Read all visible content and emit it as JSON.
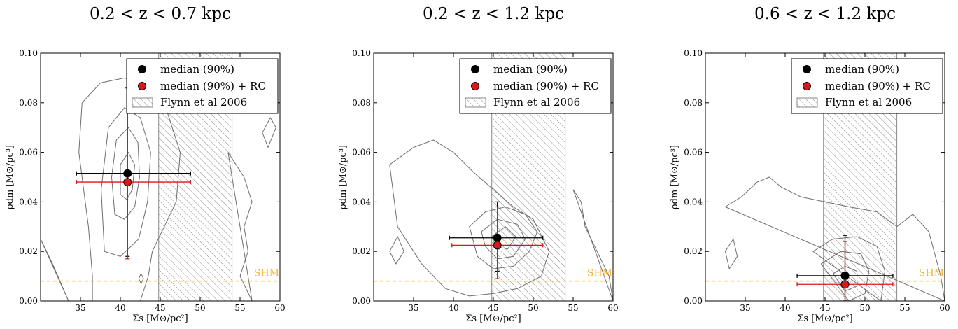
{
  "chart_data": [
    {
      "type": "scatter",
      "title": "0.2 < z < 0.7 kpc",
      "xlabel": "Σs [M⊙/pc²]",
      "ylabel": "ρdm [M⊙/pc³]",
      "xlim": [
        30,
        60
      ],
      "ylim": [
        0.0,
        0.1
      ],
      "xticks": [
        "35",
        "40",
        "45",
        "50",
        "55",
        "60"
      ],
      "yticks": [
        "0.00",
        "0.02",
        "0.04",
        "0.06",
        "0.08",
        "0.10"
      ],
      "legend_position": "top-right",
      "band": {
        "name": "Flynn et al 2006",
        "x": [
          44.8,
          54.0
        ]
      },
      "shm": {
        "name": "SHM",
        "y": 0.008
      },
      "series": [
        {
          "name": "median (90%)",
          "color": "#000000",
          "x": 40.9,
          "y": 0.0515,
          "xerr": [
            34.5,
            48.8
          ],
          "yerr": [
            0.018,
            0.086
          ]
        },
        {
          "name": "median (90%) + RC",
          "color": "#e0141b",
          "x": 40.9,
          "y": 0.048,
          "xerr": [
            34.5,
            48.8
          ],
          "yerr": [
            0.017,
            0.086
          ]
        }
      ],
      "contours": [
        [
          [
            36.5,
            0.0
          ],
          [
            36.5,
            0.01
          ],
          [
            36.0,
            0.03
          ],
          [
            34.8,
            0.06
          ],
          [
            35.2,
            0.08
          ],
          [
            37.5,
            0.088
          ],
          [
            40.5,
            0.09
          ],
          [
            43.0,
            0.088
          ],
          [
            45.5,
            0.08
          ],
          [
            47.5,
            0.06
          ],
          [
            47.0,
            0.04
          ],
          [
            45.5,
            0.03
          ],
          [
            44.0,
            0.02
          ],
          [
            43.5,
            0.01
          ],
          [
            42.5,
            0.0
          ]
        ],
        [
          [
            38.0,
            0.02
          ],
          [
            37.6,
            0.045
          ],
          [
            38.5,
            0.07
          ],
          [
            40.5,
            0.078
          ],
          [
            42.5,
            0.074
          ],
          [
            43.8,
            0.06
          ],
          [
            43.4,
            0.04
          ],
          [
            42.3,
            0.025
          ],
          [
            40.0,
            0.018
          ]
        ],
        [
          [
            39.3,
            0.035
          ],
          [
            38.9,
            0.05
          ],
          [
            39.5,
            0.065
          ],
          [
            41.0,
            0.07
          ],
          [
            42.2,
            0.064
          ],
          [
            42.4,
            0.05
          ],
          [
            41.8,
            0.038
          ],
          [
            40.5,
            0.033
          ]
        ],
        [
          [
            40.0,
            0.043
          ],
          [
            40.0,
            0.055
          ],
          [
            41.0,
            0.06
          ],
          [
            41.8,
            0.055
          ],
          [
            41.5,
            0.045
          ],
          [
            40.8,
            0.041
          ]
        ],
        [
          [
            30.0,
            0.025
          ],
          [
            31.5,
            0.015
          ],
          [
            33.5,
            0.0
          ]
        ],
        [
          [
            53.5,
            0.06
          ],
          [
            55.5,
            0.05
          ],
          [
            56.5,
            0.04
          ],
          [
            55.5,
            0.03
          ],
          [
            56.0,
            0.02
          ],
          [
            55.0,
            0.01
          ],
          [
            56.5,
            0.0
          ]
        ],
        [
          [
            57.8,
            0.068
          ],
          [
            58.8,
            0.074
          ],
          [
            59.5,
            0.07
          ],
          [
            58.5,
            0.062
          ]
        ],
        [
          [
            42.3,
            0.009
          ],
          [
            42.6,
            0.011
          ],
          [
            42.9,
            0.009
          ],
          [
            42.6,
            0.007
          ]
        ]
      ]
    },
    {
      "type": "scatter",
      "title": "0.2 < z < 1.2 kpc",
      "xlabel": "Σs [M⊙/pc²]",
      "ylabel": "ρdm [M⊙/pc³]",
      "xlim": [
        30,
        60
      ],
      "ylim": [
        0.0,
        0.1
      ],
      "xticks": [
        "35",
        "40",
        "45",
        "50",
        "55",
        "60"
      ],
      "yticks": [
        "0.00",
        "0.02",
        "0.04",
        "0.06",
        "0.08",
        "0.10"
      ],
      "legend_position": "top-right",
      "band": {
        "name": "Flynn et al 2006",
        "x": [
          44.8,
          54.0
        ]
      },
      "shm": {
        "name": "SHM",
        "y": 0.008
      },
      "series": [
        {
          "name": "median (90%)",
          "color": "#000000",
          "x": 45.5,
          "y": 0.0255,
          "xerr": [
            39.5,
            51.2
          ],
          "yerr": [
            0.012,
            0.04
          ]
        },
        {
          "name": "median (90%) + RC",
          "color": "#e0141b",
          "x": 45.5,
          "y": 0.0225,
          "xerr": [
            39.8,
            51.2
          ],
          "yerr": [
            0.009,
            0.038
          ]
        }
      ],
      "contours": [
        [
          [
            32.0,
            0.055
          ],
          [
            35.0,
            0.062
          ],
          [
            37.5,
            0.065
          ],
          [
            40.0,
            0.06
          ],
          [
            42.5,
            0.052
          ],
          [
            45.0,
            0.045
          ],
          [
            47.5,
            0.038
          ],
          [
            50.0,
            0.033
          ],
          [
            52.0,
            0.02
          ],
          [
            51.0,
            0.01
          ],
          [
            48.0,
            0.005
          ],
          [
            45.0,
            0.003
          ],
          [
            42.0,
            0.002
          ],
          [
            39.0,
            0.005
          ],
          [
            36.0,
            0.015
          ],
          [
            33.0,
            0.03
          ]
        ],
        [
          [
            42.0,
            0.03
          ],
          [
            44.0,
            0.036
          ],
          [
            46.5,
            0.038
          ],
          [
            49.0,
            0.035
          ],
          [
            50.5,
            0.028
          ],
          [
            49.5,
            0.02
          ],
          [
            47.5,
            0.014
          ],
          [
            45.0,
            0.013
          ],
          [
            43.0,
            0.018
          ]
        ],
        [
          [
            43.5,
            0.028
          ],
          [
            45.5,
            0.033
          ],
          [
            48.0,
            0.031
          ],
          [
            49.0,
            0.025
          ],
          [
            47.5,
            0.018
          ],
          [
            45.5,
            0.017
          ],
          [
            44.0,
            0.022
          ]
        ],
        [
          [
            44.8,
            0.026
          ],
          [
            46.5,
            0.03
          ],
          [
            47.8,
            0.026
          ],
          [
            46.8,
            0.021
          ],
          [
            45.3,
            0.022
          ]
        ],
        [
          [
            32.0,
            0.02
          ],
          [
            33.0,
            0.026
          ],
          [
            33.8,
            0.02
          ],
          [
            32.8,
            0.015
          ]
        ],
        [
          [
            55.0,
            0.045
          ],
          [
            56.0,
            0.04
          ],
          [
            56.5,
            0.03
          ],
          [
            58.0,
            0.02
          ],
          [
            59.5,
            0.01
          ],
          [
            60.0,
            0.0
          ]
        ]
      ]
    },
    {
      "type": "scatter",
      "title": "0.6 < z < 1.2 kpc",
      "xlabel": "Σs [M⊙/pc²]",
      "ylabel": "ρdm [M⊙/pc³]",
      "xlim": [
        30,
        60
      ],
      "ylim": [
        0.0,
        0.1
      ],
      "xticks": [
        "35",
        "40",
        "45",
        "50",
        "55",
        "60"
      ],
      "yticks": [
        "0.00",
        "0.02",
        "0.04",
        "0.06",
        "0.08",
        "0.10"
      ],
      "legend_position": "top-right",
      "band": {
        "name": "Flynn et al 2006",
        "x": [
          44.8,
          54.0
        ]
      },
      "shm": {
        "name": "SHM",
        "y": 0.008
      },
      "series": [
        {
          "name": "median (90%)",
          "color": "#000000",
          "x": 47.5,
          "y": 0.0102,
          "xerr": [
            41.5,
            53.5
          ],
          "yerr": [
            0.0,
            0.0265
          ]
        },
        {
          "name": "median (90%) + RC",
          "color": "#e0141b",
          "x": 47.5,
          "y": 0.0067,
          "xerr": [
            41.5,
            53.5
          ],
          "yerr": [
            0.0,
            0.024
          ]
        }
      ],
      "contours": [
        [
          [
            32.5,
            0.038
          ],
          [
            34.5,
            0.042
          ],
          [
            36.5,
            0.048
          ],
          [
            38.0,
            0.05
          ],
          [
            39.5,
            0.046
          ],
          [
            42.0,
            0.042
          ],
          [
            45.0,
            0.04
          ],
          [
            48.0,
            0.038
          ],
          [
            51.5,
            0.036
          ],
          [
            54.0,
            0.03
          ],
          [
            56.0,
            0.035
          ],
          [
            58.0,
            0.028
          ],
          [
            59.5,
            0.01
          ],
          [
            60.0,
            0.0
          ]
        ],
        [
          [
            43.5,
            0.02
          ],
          [
            46.0,
            0.025
          ],
          [
            49.0,
            0.026
          ],
          [
            51.5,
            0.022
          ],
          [
            52.5,
            0.012
          ],
          [
            52.0,
            0.0
          ]
        ],
        [
          [
            44.5,
            0.015
          ],
          [
            47.0,
            0.02
          ],
          [
            49.5,
            0.019
          ],
          [
            50.5,
            0.012
          ],
          [
            50.0,
            0.003
          ],
          [
            48.0,
            0.0
          ]
        ],
        [
          [
            46.0,
            0.011
          ],
          [
            47.5,
            0.014
          ],
          [
            49.0,
            0.012
          ],
          [
            49.0,
            0.006
          ],
          [
            47.5,
            0.004
          ]
        ],
        [
          [
            32.5,
            0.02
          ],
          [
            33.5,
            0.025
          ],
          [
            34.0,
            0.018
          ],
          [
            33.0,
            0.013
          ]
        ]
      ]
    }
  ]
}
